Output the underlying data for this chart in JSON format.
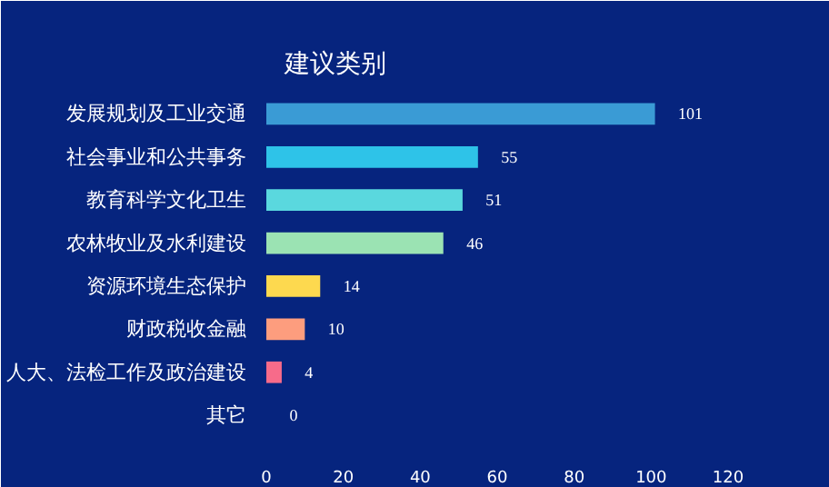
{
  "chart_data": {
    "type": "bar",
    "orientation": "horizontal",
    "title": "建议类别",
    "categories": [
      "发展规划及工业交通",
      "社会事业和公共事务",
      "教育科学文化卫生",
      "农林牧业及水利建设",
      "资源环境生态保护",
      "财政税收金融",
      "人大、法检工作及政治建设",
      "其它"
    ],
    "values": [
      101,
      55,
      51,
      46,
      14,
      10,
      4,
      0
    ],
    "colors": [
      "#3a9bd5",
      "#2ec3e8",
      "#5ad8de",
      "#9be3b3",
      "#fdd94f",
      "#fd9d7e",
      "#f76b8a",
      "#8f9fd0"
    ],
    "xlim": [
      0,
      120
    ],
    "xticks": [
      0,
      20,
      40,
      60,
      80,
      100,
      120
    ],
    "data_labels": true,
    "grid": false
  }
}
